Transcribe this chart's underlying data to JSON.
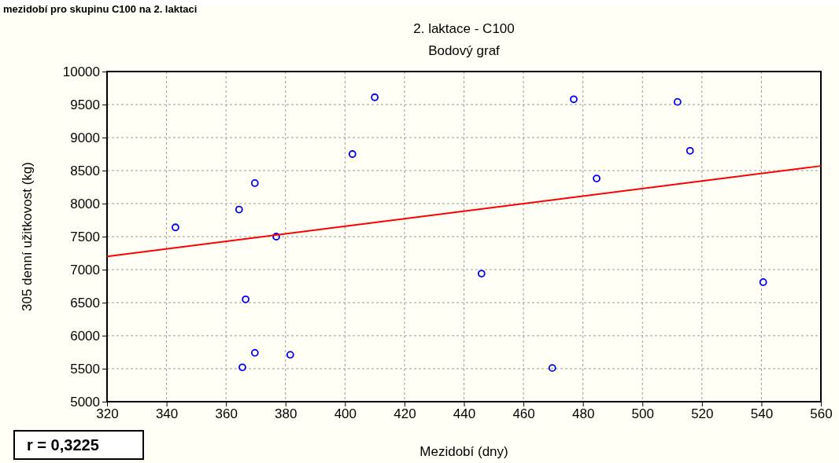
{
  "chart_data": {
    "type": "scatter",
    "title": "2. laktace - C100",
    "subtitle": "Bodový graf",
    "xlabel": "Mezidobí (dny)",
    "ylabel": "305 denní užitkovost (kg)",
    "annotations": [
      "mezidobí pro skupinu C100 na 2. laktaci",
      "r = 0,3225"
    ],
    "xlim": [
      320,
      560
    ],
    "xticks": [
      320,
      340,
      360,
      380,
      400,
      420,
      440,
      460,
      480,
      500,
      520,
      540,
      560
    ],
    "ylim": [
      5000,
      10000
    ],
    "yticks": [
      5000,
      5500,
      6000,
      6500,
      7000,
      7500,
      8000,
      8500,
      9000,
      9500,
      10000
    ],
    "grid": true,
    "series": [
      {
        "marker": "circle",
        "color": "#0000ff",
        "x": [
          343,
          364.4,
          369.7,
          376.9,
          366.6,
          365.5,
          369.7,
          381.6,
          402.5,
          410,
          445.9,
          469.7,
          476.9,
          484.6,
          511.8,
          516,
          540.6
        ],
        "values": [
          7640,
          7910,
          8310,
          7500,
          6550,
          5520,
          5740,
          5710,
          8750,
          9610,
          6940,
          5510,
          9580,
          8380,
          9540,
          8800,
          6810
        ]
      },
      {
        "type": "line",
        "color": "#ff0000",
        "x": [
          320,
          560
        ],
        "values": [
          7200,
          8570
        ]
      }
    ]
  }
}
